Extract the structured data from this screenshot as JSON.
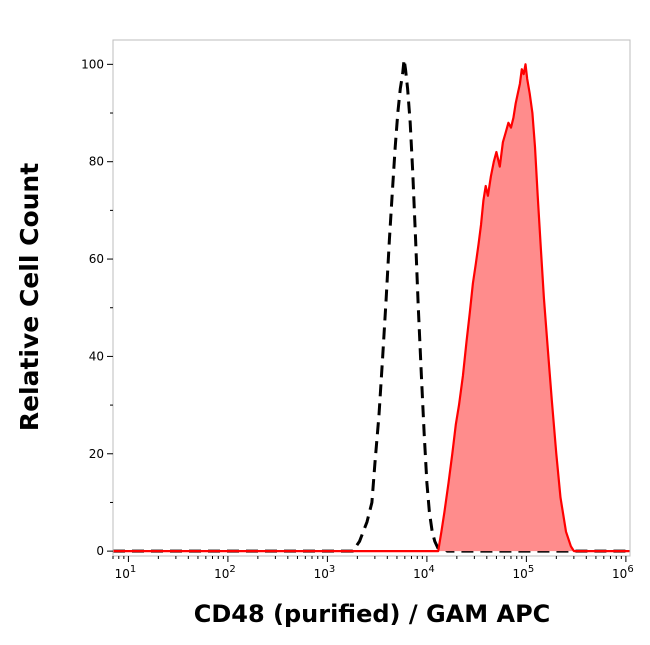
{
  "chart_data": {
    "type": "area",
    "title": "",
    "xlabel": "CD48 (purified) / GAM APC",
    "ylabel": "Relative Cell Count",
    "x_scale": "log",
    "xlim": [
      7,
      1100000
    ],
    "ylim": [
      -1,
      105
    ],
    "grid": false,
    "legend": "none",
    "x_ticks": [
      {
        "value": 10,
        "base": "10",
        "exp": "1"
      },
      {
        "value": 100,
        "base": "10",
        "exp": "2"
      },
      {
        "value": 1000,
        "base": "10",
        "exp": "3"
      },
      {
        "value": 10000,
        "base": "10",
        "exp": "4"
      },
      {
        "value": 100000,
        "base": "10",
        "exp": "5"
      },
      {
        "value": 1000000,
        "base": "10",
        "exp": "6"
      }
    ],
    "y_ticks": [
      {
        "value": 0,
        "label": "0"
      },
      {
        "value": 20,
        "label": "20"
      },
      {
        "value": 40,
        "label": "40"
      },
      {
        "value": 60,
        "label": "60"
      },
      {
        "value": 80,
        "label": "80"
      },
      {
        "value": 100,
        "label": "100"
      }
    ],
    "series": [
      {
        "style": "dashed",
        "color": "#000000",
        "x": [
          1800,
          2100,
          2500,
          2800,
          3000,
          3300,
          3600,
          3900,
          4200,
          4500,
          4800,
          5100,
          5400,
          5700,
          5900,
          6100,
          6400,
          6800,
          7200,
          7700,
          8200,
          8800,
          9400,
          10000,
          10600,
          11300,
          12000,
          13000,
          14500,
          16000,
          18000
        ],
        "y": [
          0,
          2,
          6,
          10,
          18,
          28,
          40,
          52,
          64,
          74,
          83,
          90,
          95,
          98,
          101,
          99,
          95,
          88,
          78,
          64,
          50,
          36,
          24,
          14,
          8,
          4,
          2,
          0.5,
          1,
          0,
          0
        ]
      },
      {
        "style": "filled",
        "color": "#ff0000",
        "fill": "#ff8c8c",
        "x": [
          13000,
          14000,
          15000,
          16500,
          18000,
          19500,
          21000,
          23000,
          25000,
          27000,
          29000,
          31000,
          33000,
          35000,
          37000,
          39000,
          41000,
          44000,
          47000,
          50000,
          54000,
          58000,
          62000,
          66000,
          70000,
          74000,
          78000,
          82000,
          86000,
          90000,
          94000,
          98000,
          102000,
          108000,
          115000,
          122000,
          130000,
          140000,
          150000,
          165000,
          180000,
          200000,
          220000,
          250000,
          280000,
          300000
        ],
        "y": [
          0,
          4,
          8,
          14,
          20,
          26,
          30,
          36,
          43,
          49,
          55,
          59,
          63,
          67,
          72,
          75,
          73,
          77,
          80,
          82,
          79,
          84,
          86,
          88,
          87,
          89,
          92,
          94,
          96,
          99,
          98,
          100,
          97,
          94,
          90,
          83,
          73,
          62,
          52,
          41,
          31,
          20,
          11,
          4,
          1,
          0
        ]
      }
    ]
  }
}
